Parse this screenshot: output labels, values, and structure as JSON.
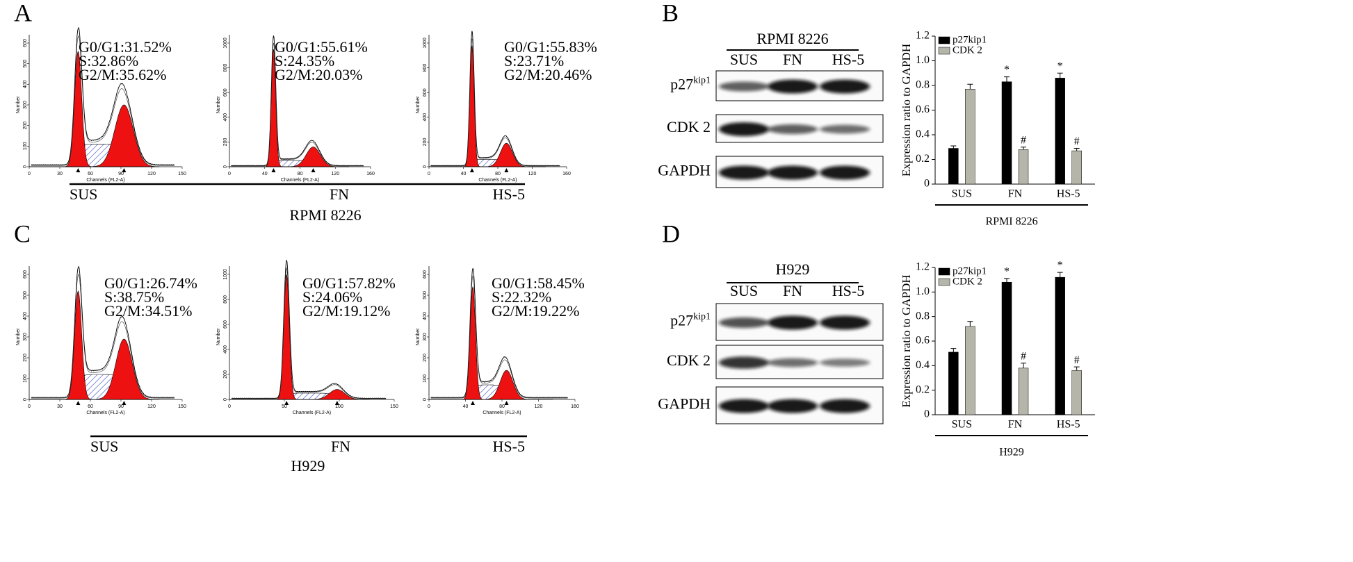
{
  "panels": {
    "A": {
      "letter": "A",
      "cell_line": "RPMI 8226",
      "histograms": [
        {
          "label": "SUS",
          "lines": [
            "G0/G1:31.52%",
            "S:32.86%",
            "G2/M:35.62%"
          ],
          "xticks": [
            0,
            30,
            60,
            90,
            120,
            150
          ],
          "yticks": [
            0,
            100,
            200,
            300,
            400,
            500,
            600
          ],
          "xlabel": "Channels (FL2-A)",
          "ylabel": "Number"
        },
        {
          "label": "FN",
          "lines": [
            "G0/G1:55.61%",
            "S:24.35%",
            "G2/M:20.03%"
          ],
          "xticks": [
            0,
            40,
            80,
            120,
            160
          ],
          "yticks": [
            0,
            200,
            400,
            600,
            800,
            1000
          ],
          "xlabel": "Channels (FL2-A)",
          "ylabel": "Number"
        },
        {
          "label": "HS-5",
          "lines": [
            "G0/G1:55.83%",
            "S:23.71%",
            "G2/M:20.46%"
          ],
          "xticks": [
            0,
            40,
            80,
            120,
            160
          ],
          "yticks": [
            0,
            200,
            400,
            600,
            800,
            1000
          ],
          "xlabel": "Channels (FL2-A)",
          "ylabel": "Number"
        }
      ]
    },
    "C": {
      "letter": "C",
      "cell_line": "H929",
      "histograms": [
        {
          "label": "SUS",
          "lines": [
            "G0/G1:26.74%",
            "S:38.75%",
            "G2/M:34.51%"
          ],
          "xticks": [
            0,
            30,
            60,
            90,
            120,
            150
          ],
          "yticks": [
            0,
            100,
            200,
            300,
            400,
            500,
            600
          ],
          "xlabel": "Channels (FL2-A)",
          "ylabel": "Number"
        },
        {
          "label": "FN",
          "lines": [
            "G0/G1:57.82%",
            "S:24.06%",
            "G2/M:19.12%"
          ],
          "xticks": [
            0,
            50,
            100,
            150
          ],
          "yticks": [
            0,
            200,
            400,
            600,
            800,
            1000
          ],
          "xlabel": "Channels (FL2-A)",
          "ylabel": "Number"
        },
        {
          "label": "HS-5",
          "lines": [
            "G0/G1:58.45%",
            "S:22.32%",
            "G2/M:19.22%"
          ],
          "xticks": [
            0,
            40,
            80,
            120,
            160
          ],
          "yticks": [
            0,
            100,
            200,
            300,
            400,
            500,
            600
          ],
          "xlabel": "Channels (FL2-A)",
          "ylabel": "Number"
        }
      ]
    },
    "B": {
      "letter": "B",
      "blot": {
        "title": "RPMI 8226",
        "lanes": [
          "SUS",
          "FN",
          "HS-5"
        ],
        "rows": [
          {
            "name": "p27",
            "sup": "kip1"
          },
          {
            "name": "CDK 2"
          },
          {
            "name": "GAPDH"
          }
        ]
      }
    },
    "D": {
      "letter": "D",
      "blot": {
        "title": "H929",
        "lanes": [
          "SUS",
          "FN",
          "HS-5"
        ],
        "rows": [
          {
            "name": "p27",
            "sup": "kip1"
          },
          {
            "name": "CDK 2"
          },
          {
            "name": "GAPDH"
          }
        ]
      }
    }
  },
  "chart_data": [
    {
      "type": "bar",
      "ylabel": "Expression ratio to GAPDH",
      "group_label": "RPMI 8226",
      "categories": [
        "SUS",
        "FN",
        "HS-5"
      ],
      "series": [
        {
          "name": "p27kip1",
          "color": "#000000",
          "values": [
            0.29,
            0.83,
            0.86
          ],
          "errors": [
            0.02,
            0.04,
            0.04
          ],
          "marks": [
            null,
            "*",
            "*"
          ]
        },
        {
          "name": "CDK 2",
          "color": "#b5b5aa",
          "values": [
            0.77,
            0.28,
            0.27
          ],
          "errors": [
            0.04,
            0.02,
            0.02
          ],
          "marks": [
            null,
            "#",
            "#"
          ]
        }
      ],
      "ylim": [
        0,
        1.2
      ],
      "yticks": [
        0,
        0.2,
        0.4,
        0.6,
        0.8,
        {
          "value": 1,
          "label": "1.0"
        },
        1.2
      ],
      "legend": "upper left"
    },
    {
      "type": "bar",
      "ylabel": "Expression ratio to GAPDH",
      "group_label": "H929",
      "categories": [
        "SUS",
        "FN",
        "HS-5"
      ],
      "series": [
        {
          "name": "p27kip1",
          "color": "#000000",
          "values": [
            0.51,
            1.08,
            1.12
          ],
          "errors": [
            0.03,
            0.03,
            0.04
          ],
          "marks": [
            null,
            "*",
            "*"
          ]
        },
        {
          "name": "CDK 2",
          "color": "#b5b5aa",
          "values": [
            0.72,
            0.38,
            0.36
          ],
          "errors": [
            0.04,
            0.04,
            0.03
          ],
          "marks": [
            null,
            "#",
            "#"
          ]
        }
      ],
      "ylim": [
        0,
        1.2
      ],
      "yticks": [
        0,
        0.2,
        0.4,
        0.6,
        0.8,
        {
          "value": 1,
          "label": "1.0"
        },
        1.2
      ],
      "legend": "upper left"
    }
  ]
}
